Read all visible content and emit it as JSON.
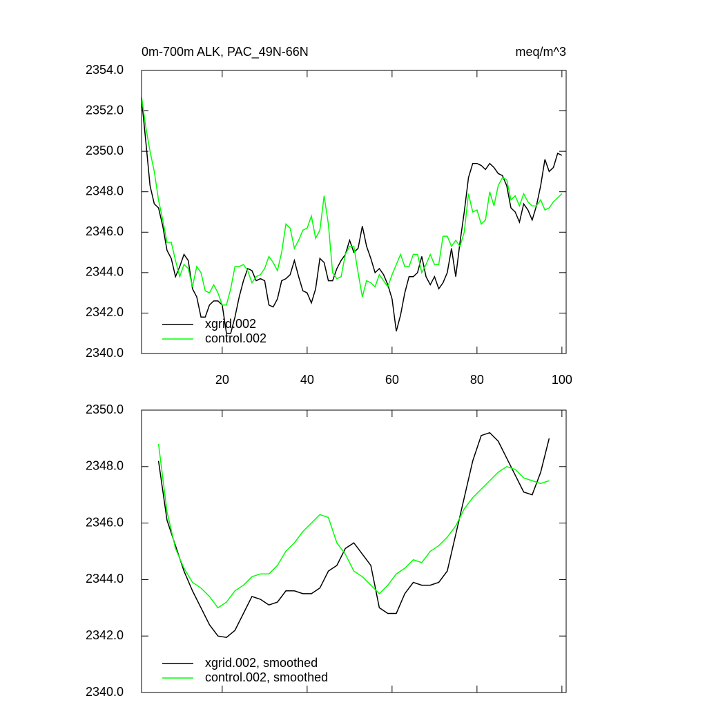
{
  "chart_data": [
    {
      "type": "line",
      "title": "0m-700m ALK, PAC_49N-66N",
      "title_right": "meq/m^3",
      "x": [
        1,
        2,
        3,
        4,
        5,
        6,
        7,
        8,
        9,
        10,
        11,
        12,
        13,
        14,
        15,
        16,
        17,
        18,
        19,
        20,
        21,
        22,
        23,
        24,
        25,
        26,
        27,
        28,
        29,
        30,
        31,
        32,
        33,
        34,
        35,
        36,
        37,
        38,
        39,
        40,
        41,
        42,
        43,
        44,
        45,
        46,
        47,
        48,
        49,
        50,
        51,
        52,
        53,
        54,
        55,
        56,
        57,
        58,
        59,
        60,
        61,
        62,
        63,
        64,
        65,
        66,
        67,
        68,
        69,
        70,
        71,
        72,
        73,
        74,
        75,
        76,
        77,
        78,
        79,
        80,
        81,
        82,
        83,
        84,
        85,
        86,
        87,
        88,
        89,
        90,
        91,
        92,
        93,
        94,
        95,
        96,
        97,
        98,
        99,
        100
      ],
      "series": [
        {
          "name": "xgrid.002",
          "color": "#000000",
          "values": [
            2352.6,
            2350.5,
            2348.3,
            2347.4,
            2347.2,
            2346.3,
            2345.1,
            2344.7,
            2343.8,
            2344.3,
            2344.9,
            2344.6,
            2343.2,
            2342.8,
            2341.8,
            2341.8,
            2342.4,
            2342.6,
            2342.6,
            2342.4,
            2341.0,
            2341.0,
            2341.8,
            2342.8,
            2343.6,
            2344.2,
            2344.1,
            2343.6,
            2343.7,
            2343.6,
            2342.4,
            2342.3,
            2342.7,
            2343.6,
            2343.7,
            2343.9,
            2344.6,
            2343.8,
            2343.1,
            2343.0,
            2342.5,
            2343.2,
            2344.7,
            2344.5,
            2343.6,
            2343.6,
            2344.2,
            2344.6,
            2344.9,
            2345.6,
            2345.0,
            2345.2,
            2346.3,
            2345.3,
            2344.7,
            2344.0,
            2344.2,
            2343.9,
            2343.4,
            2342.7,
            2341.1,
            2341.9,
            2343.0,
            2343.8,
            2343.8,
            2344.0,
            2344.8,
            2343.8,
            2343.4,
            2343.8,
            2343.2,
            2343.5,
            2344.0,
            2345.2,
            2343.8,
            2345.5,
            2347.0,
            2348.7,
            2349.4,
            2349.4,
            2349.3,
            2349.1,
            2349.4,
            2349.2,
            2348.9,
            2348.8,
            2348.3,
            2347.2,
            2347.0,
            2346.5,
            2347.4,
            2347.1,
            2346.6,
            2347.3,
            2348.3,
            2349.6,
            2349.0,
            2349.2,
            2349.9,
            2349.8
          ]
        },
        {
          "name": "control.002",
          "color": "#00ff00",
          "values": [
            2352.7,
            2351.2,
            2350.0,
            2349.0,
            2347.6,
            2346.6,
            2345.5,
            2345.5,
            2344.6,
            2343.8,
            2344.4,
            2344.2,
            2343.3,
            2344.3,
            2344.0,
            2343.1,
            2343.0,
            2343.4,
            2343.0,
            2342.4,
            2342.4,
            2343.2,
            2344.3,
            2344.3,
            2344.4,
            2344.1,
            2343.5,
            2343.8,
            2343.9,
            2344.2,
            2344.8,
            2344.5,
            2344.1,
            2345.0,
            2346.4,
            2346.2,
            2345.2,
            2345.6,
            2346.1,
            2346.2,
            2346.8,
            2345.7,
            2346.1,
            2347.8,
            2346.4,
            2344.0,
            2343.7,
            2343.8,
            2344.9,
            2345.3,
            2345.3,
            2344.0,
            2342.8,
            2343.6,
            2343.5,
            2343.3,
            2343.9,
            2343.6,
            2343.3,
            2343.9,
            2344.4,
            2344.9,
            2344.3,
            2344.3,
            2344.9,
            2344.9,
            2344.0,
            2344.4,
            2344.9,
            2344.4,
            2344.4,
            2345.8,
            2345.8,
            2345.3,
            2345.6,
            2345.3,
            2346.0,
            2347.9,
            2347.0,
            2347.1,
            2346.4,
            2346.6,
            2348.0,
            2347.3,
            2348.3,
            2348.7,
            2348.6,
            2347.6,
            2347.8,
            2347.3,
            2347.9,
            2347.5,
            2347.3,
            2347.3,
            2347.6,
            2347.1,
            2347.2,
            2347.5,
            2347.7,
            2347.9
          ]
        }
      ],
      "xlim": [
        1,
        101
      ],
      "ylim": [
        2340,
        2354
      ],
      "xticks": [
        20,
        40,
        60,
        80,
        100
      ],
      "yticks": [
        {
          "value": 2340,
          "label": "2340.0"
        },
        {
          "value": 2342,
          "label": "2342.0"
        },
        {
          "value": 2344,
          "label": "2344.0"
        },
        {
          "value": 2346,
          "label": "2346.0"
        },
        {
          "value": 2348,
          "label": "2348.0"
        },
        {
          "value": 2350,
          "label": "2350.0"
        },
        {
          "value": 2352,
          "label": "2352.0"
        },
        {
          "value": 2354,
          "label": "2354.0"
        }
      ],
      "xtick_labels": true,
      "legend": "lower left"
    },
    {
      "type": "line",
      "x": [
        5,
        7,
        9,
        11,
        13,
        15,
        17,
        19,
        21,
        23,
        25,
        27,
        29,
        31,
        33,
        35,
        37,
        39,
        41,
        43,
        45,
        47,
        49,
        51,
        53,
        55,
        57,
        59,
        61,
        63,
        65,
        67,
        69,
        71,
        73,
        75,
        77,
        79,
        81,
        83,
        85,
        87,
        89,
        91,
        93,
        95,
        97
      ],
      "series": [
        {
          "name": "xgrid.002, smoothed",
          "color": "#000000",
          "values": [
            2348.2,
            2346.1,
            2345.2,
            2344.3,
            2343.6,
            2343.0,
            2342.4,
            2342.0,
            2341.95,
            2342.2,
            2342.8,
            2343.4,
            2343.3,
            2343.1,
            2343.2,
            2343.6,
            2343.6,
            2343.5,
            2343.5,
            2343.7,
            2344.3,
            2344.5,
            2345.1,
            2345.3,
            2344.9,
            2344.5,
            2343.0,
            2342.8,
            2342.8,
            2343.5,
            2343.9,
            2343.8,
            2343.8,
            2343.9,
            2344.3,
            2345.6,
            2346.9,
            2348.2,
            2349.1,
            2349.2,
            2348.9,
            2348.3,
            2347.7,
            2347.1,
            2347.0,
            2347.8,
            2349.0
          ]
        },
        {
          "name": "control.002, smoothed",
          "color": "#00ff00",
          "values": [
            2348.8,
            2346.4,
            2345.1,
            2344.4,
            2343.9,
            2343.7,
            2343.4,
            2343.0,
            2343.2,
            2343.6,
            2343.8,
            2344.1,
            2344.2,
            2344.2,
            2344.5,
            2345.0,
            2345.3,
            2345.7,
            2346.0,
            2346.3,
            2346.2,
            2345.3,
            2344.9,
            2344.3,
            2344.1,
            2343.8,
            2343.5,
            2343.8,
            2344.2,
            2344.4,
            2344.7,
            2344.6,
            2345.0,
            2345.2,
            2345.5,
            2345.9,
            2346.5,
            2346.9,
            2347.2,
            2347.5,
            2347.8,
            2348.0,
            2347.9,
            2347.6,
            2347.5,
            2347.4,
            2347.5
          ]
        }
      ],
      "xlim": [
        1,
        101
      ],
      "ylim": [
        2340,
        2350
      ],
      "xticks": [
        20,
        40,
        60,
        80,
        100
      ],
      "yticks": [
        {
          "value": 2340,
          "label": "2340.0"
        },
        {
          "value": 2342,
          "label": "2342.0"
        },
        {
          "value": 2344,
          "label": "2344.0"
        },
        {
          "value": 2346,
          "label": "2346.0"
        },
        {
          "value": 2348,
          "label": "2348.0"
        },
        {
          "value": 2350,
          "label": "2350.0"
        }
      ],
      "xtick_labels": false,
      "legend": "lower left"
    }
  ]
}
